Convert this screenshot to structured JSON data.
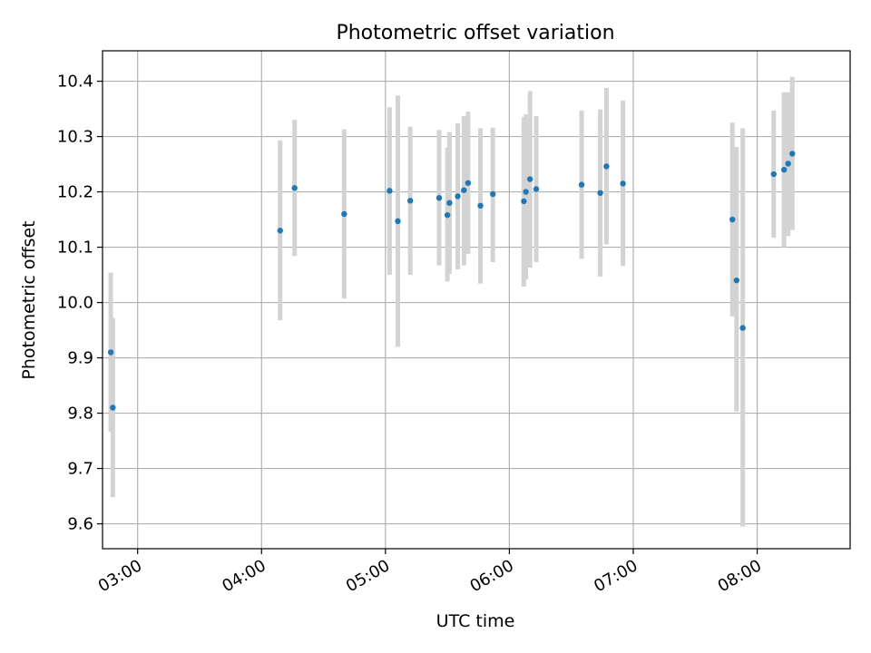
{
  "chart_data": {
    "type": "scatter",
    "title": "Photometric offset variation",
    "xlabel": "UTC time",
    "ylabel": "Photometric offset",
    "x_ticks": [
      "03:00",
      "04:00",
      "05:00",
      "06:00",
      "07:00",
      "08:00"
    ],
    "y_ticks": [
      "9.6",
      "9.7",
      "9.8",
      "9.9",
      "10.0",
      "10.1",
      "10.2",
      "10.3",
      "10.4"
    ],
    "xlim": [
      "02:43",
      "08:45"
    ],
    "ylim": [
      9.555,
      10.455
    ],
    "grid": true,
    "marker_color": "#1f77b4",
    "errorbar_color": "#d3d3d3",
    "series": [
      {
        "x": [
          "02:47",
          "02:48",
          "04:09",
          "04:16",
          "04:40",
          "05:02",
          "05:06",
          "05:12",
          "05:26",
          "05:30",
          "05:31",
          "05:35",
          "05:38",
          "05:40",
          "05:46",
          "05:52",
          "06:07",
          "06:08",
          "06:10",
          "06:13",
          "06:35",
          "06:44",
          "06:47",
          "06:55",
          "07:48",
          "07:50",
          "07:53",
          "08:08",
          "08:13",
          "08:15",
          "08:17"
        ],
        "y": [
          9.91,
          9.81,
          10.13,
          10.207,
          10.16,
          10.202,
          10.147,
          10.184,
          10.189,
          10.158,
          10.18,
          10.192,
          10.203,
          10.216,
          10.175,
          10.196,
          10.183,
          10.2,
          10.223,
          10.205,
          10.213,
          10.198,
          10.246,
          10.215,
          10.15,
          10.04,
          9.954,
          10.232,
          10.24,
          10.251,
          10.269
        ],
        "y_low": [
          9.766,
          9.648,
          9.968,
          10.084,
          10.007,
          10.05,
          9.92,
          10.05,
          10.067,
          10.038,
          10.052,
          10.06,
          10.067,
          10.088,
          10.034,
          10.073,
          10.029,
          10.042,
          10.063,
          10.073,
          10.079,
          10.047,
          10.105,
          10.066,
          9.975,
          9.803,
          9.595,
          10.117,
          10.1,
          10.12,
          10.131
        ],
        "y_high": [
          10.054,
          9.972,
          10.293,
          10.33,
          10.313,
          10.353,
          10.374,
          10.318,
          10.312,
          10.28,
          10.308,
          10.324,
          10.337,
          10.345,
          10.315,
          10.316,
          10.335,
          10.34,
          10.382,
          10.337,
          10.347,
          10.349,
          10.388,
          10.365,
          10.325,
          10.281,
          10.315,
          10.347,
          10.38,
          10.38,
          10.408
        ]
      }
    ]
  }
}
